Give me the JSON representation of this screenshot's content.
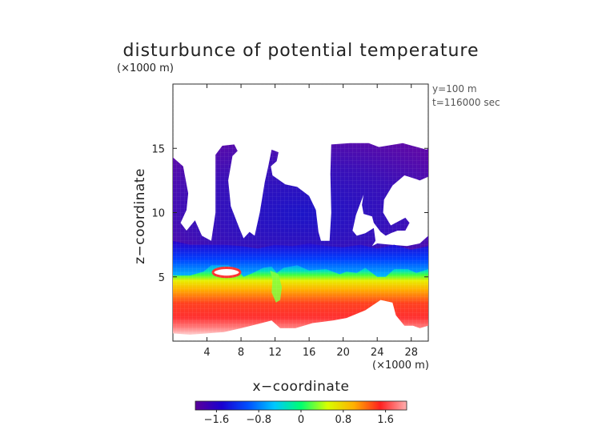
{
  "chart_data": {
    "type": "heatmap",
    "title": "disturbunce of potential temperature",
    "z_unit": "(×1000 m)",
    "x_unit": "(×1000 m)",
    "xlabel": "x−coordinate",
    "ylabel": "z−coordinate",
    "annotation": [
      "y=100 m",
      "t=116000 sec"
    ],
    "xlim": [
      0,
      30
    ],
    "ylim": [
      0,
      20
    ],
    "xticks": [
      4,
      8,
      12,
      16,
      20,
      24,
      28
    ],
    "yticks": [
      5,
      10,
      15
    ],
    "colorbar": {
      "ticks": [
        -1.6,
        -0.8,
        0,
        0.8,
        1.6
      ],
      "tick_labels": [
        "−1.6",
        "−0.8",
        "0",
        "0.8",
        "1.6"
      ],
      "range": [
        -2.0,
        2.0
      ],
      "colors": [
        "#5a0099",
        "#1a00d0",
        "#0050ff",
        "#00c8ff",
        "#00ff70",
        "#d8ff00",
        "#ffb000",
        "#ff2020",
        "#ffb0b0"
      ]
    },
    "fields": {
      "lower_warm_layer": {
        "z_range": [
          0.5,
          5.5
        ],
        "value_range": [
          0.2,
          1.9
        ]
      },
      "upper_cold_layer": {
        "z_range": [
          5.5,
          15.5
        ],
        "value_range": [
          -2.0,
          -0.4
        ]
      }
    }
  }
}
